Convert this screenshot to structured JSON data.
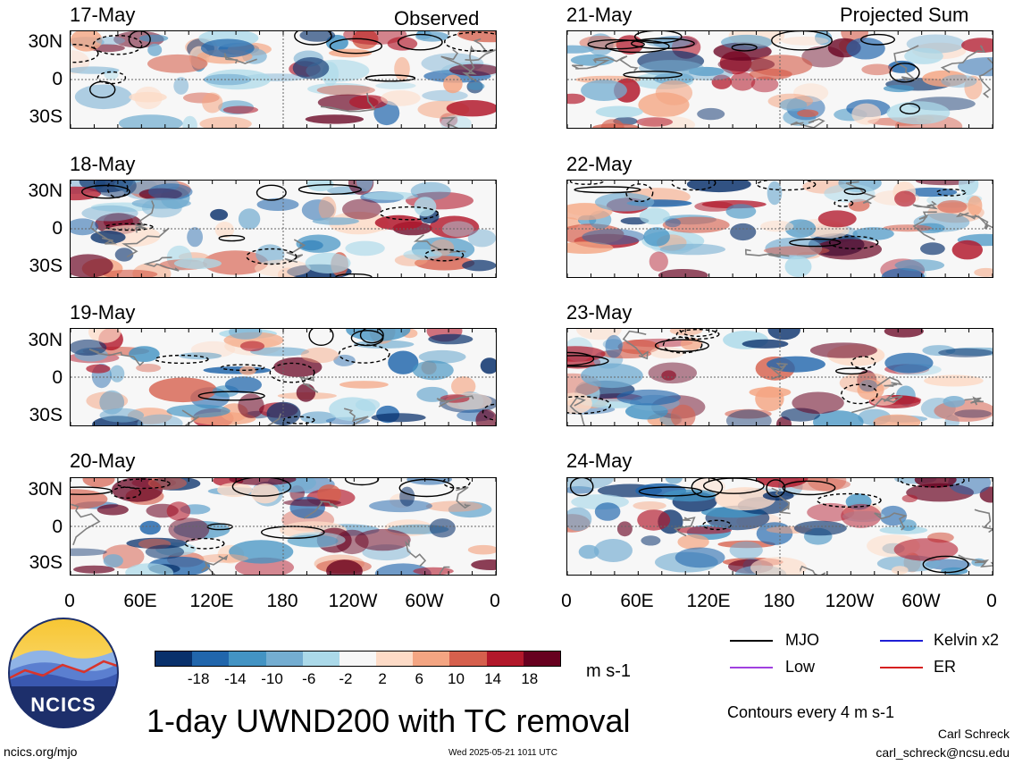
{
  "titles": {
    "left": "Observed",
    "right": "Projected Sum"
  },
  "panels_left": [
    "17-May",
    "18-May",
    "19-May",
    "20-May"
  ],
  "panels_right": [
    "21-May",
    "22-May",
    "23-May",
    "24-May"
  ],
  "y_ticks": [
    "30N",
    "0",
    "30S"
  ],
  "x_ticks": [
    "0",
    "60E",
    "120E",
    "180",
    "120W",
    "60W",
    "0"
  ],
  "colorbar": {
    "colors": [
      "#08306b",
      "#2166ac",
      "#4393c3",
      "#74add1",
      "#abd9e9",
      "#f7f7f7",
      "#fddbc7",
      "#f4a582",
      "#d6604d",
      "#b2182b",
      "#67001f"
    ],
    "labels": [
      "-18",
      "-14",
      "-10",
      "-6",
      "-2",
      "2",
      "6",
      "10",
      "14",
      "18"
    ],
    "unit": "m s-1"
  },
  "legend": [
    {
      "label": "MJO",
      "color": "#000000"
    },
    {
      "label": "Kelvin x2",
      "color": "#1f1fd6"
    },
    {
      "label": "Low",
      "color": "#a040e0"
    },
    {
      "label": "ER",
      "color": "#d62020"
    }
  ],
  "contour_note": "Contours every 4 m s-1",
  "main_title": "1-day UWND200 with TC removal",
  "logo_text": "NCICS",
  "footer": {
    "url": "ncics.org/mjo",
    "timestamp": "Wed 2025-05-21 1011 UTC",
    "author": "Carl Schreck",
    "email": "carl_schreck@ncsu.edu"
  }
}
